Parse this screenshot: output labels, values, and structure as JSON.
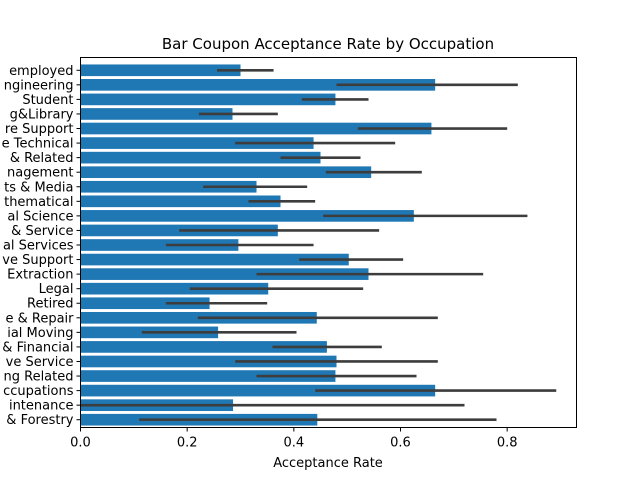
{
  "chart_data": {
    "type": "bar",
    "orientation": "horizontal",
    "title": "Bar Coupon Acceptance Rate by Occupation",
    "xlabel": "Acceptance Rate",
    "ylabel": "",
    "xlim": [
      0,
      0.93
    ],
    "x_ticks": [
      0.0,
      0.2,
      0.4,
      0.6,
      0.8
    ],
    "x_tick_labels": [
      "0.0",
      "0.2",
      "0.4",
      "0.6",
      "0.8"
    ],
    "grid": false,
    "bar_color": "#1f77b4",
    "errorbar_color": "#3d3d3d",
    "categories": [
      "Unemployed",
      "Architecture & Engineering",
      "Student",
      "Education&Training&Library",
      "Healthcare Support",
      "Healthcare Practitioners & Technical",
      "Sales & Related",
      "Management",
      "Arts Design Entertainment Sports & Media",
      "Computer & Mathematical",
      "Life Physical Social Science",
      "Personal Care & Service",
      "Community & Social Services",
      "Office & Administrative Support",
      "Construction & Extraction",
      "Legal",
      "Retired",
      "Installation Maintenance & Repair",
      "Transportation & Material Moving",
      "Business & Financial",
      "Protective Service",
      "Food Preparation & Serving Related",
      "Production Occupations",
      "Building & Grounds Cleaning & Maintenance",
      "Farming Fishing & Forestry"
    ],
    "visible_labels": [
      "employed",
      "ngineering",
      "Student",
      "g&Library",
      "re Support",
      "e Technical",
      "& Related",
      "nagement",
      "ts & Media",
      "thematical",
      "al Science",
      "& Service",
      "al Services",
      "ve Support",
      "Extraction",
      "Legal",
      "Retired",
      "e & Repair",
      "ial Moving",
      "& Financial",
      "ve Service",
      "ng Related",
      "ccupations",
      "intenance",
      "& Forestry"
    ],
    "values": [
      0.3,
      0.665,
      0.478,
      0.285,
      0.658,
      0.437,
      0.45,
      0.545,
      0.33,
      0.375,
      0.625,
      0.37,
      0.296,
      0.503,
      0.54,
      0.352,
      0.242,
      0.443,
      0.258,
      0.462,
      0.48,
      0.478,
      0.665,
      0.286,
      0.444
    ],
    "ci_low": [
      0.256,
      0.48,
      0.415,
      0.222,
      0.52,
      0.29,
      0.375,
      0.46,
      0.23,
      0.315,
      0.455,
      0.185,
      0.16,
      0.41,
      0.33,
      0.205,
      0.16,
      0.22,
      0.115,
      0.36,
      0.29,
      0.33,
      0.44,
      0.0,
      0.11
    ],
    "ci_high": [
      0.362,
      0.82,
      0.54,
      0.37,
      0.8,
      0.59,
      0.525,
      0.64,
      0.425,
      0.44,
      0.838,
      0.56,
      0.437,
      0.605,
      0.755,
      0.53,
      0.35,
      0.67,
      0.405,
      0.565,
      0.67,
      0.63,
      0.892,
      0.72,
      0.78
    ]
  }
}
